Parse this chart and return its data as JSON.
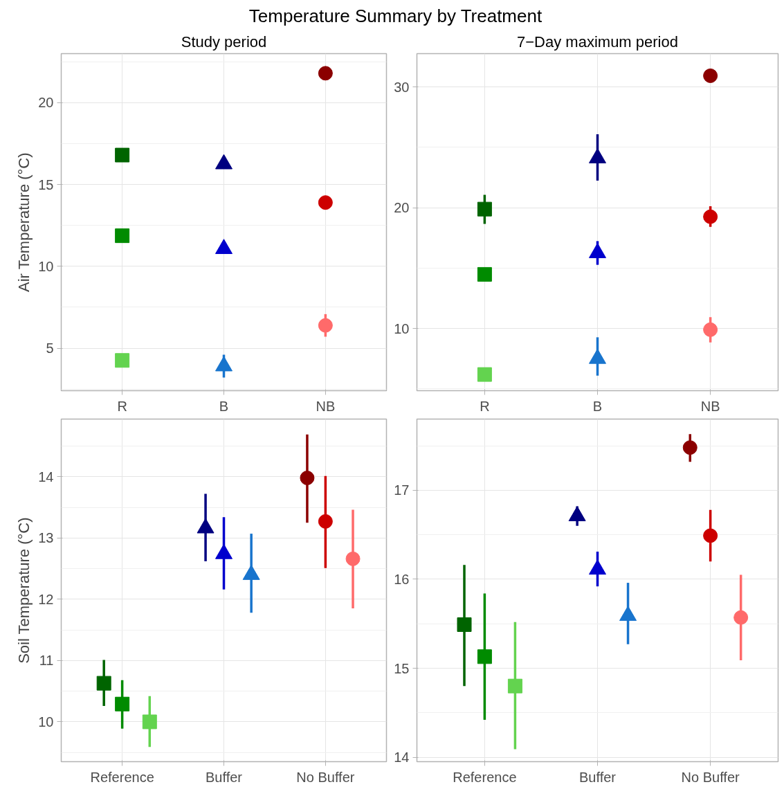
{
  "chart_data": [
    {
      "type": "scatter",
      "title": "Study period",
      "ylabel": "Air Temperature (°C)",
      "annotations": [
        "Temperature Summary by Treatment"
      ],
      "categories": [
        "R",
        "B",
        "NB"
      ],
      "ylim": [
        2.4,
        23.0
      ],
      "yticks": [
        5,
        10,
        15,
        20
      ],
      "grid": true,
      "series": [
        {
          "marker": "square",
          "x": [
            "R",
            "R",
            "R"
          ],
          "values": [
            16.8,
            11.87,
            4.25
          ],
          "colors": [
            "#006400",
            "#008b00",
            "#63d34f"
          ]
        },
        {
          "marker": "triangle",
          "x": [
            "B",
            "B",
            "B"
          ],
          "values": [
            16.25,
            11.07,
            3.9
          ],
          "colors": [
            "#000080",
            "#0000cd",
            "#1874cd"
          ],
          "errors": [
            null,
            null,
            [
              3.2,
              4.6
            ]
          ]
        },
        {
          "marker": "circle",
          "x": [
            "NB",
            "NB",
            "NB"
          ],
          "values": [
            21.8,
            13.9,
            6.39
          ],
          "colors": [
            "#8b0000",
            "#cd0000",
            "#ff6a6a"
          ],
          "errors": [
            null,
            null,
            [
              5.7,
              7.08
            ]
          ]
        }
      ]
    },
    {
      "type": "scatter",
      "title": "7−Day maximum period",
      "categories": [
        "R",
        "B",
        "NB"
      ],
      "ylim": [
        4.85,
        32.75
      ],
      "yticks": [
        10,
        20,
        30
      ],
      "grid": true,
      "series": [
        {
          "marker": "square",
          "x": [
            "R",
            "R",
            "R"
          ],
          "values": [
            19.88,
            14.48,
            6.19
          ],
          "colors": [
            "#006400",
            "#008b00",
            "#63d34f"
          ],
          "errors": [
            [
              18.66,
              21.06
            ],
            null,
            null
          ]
        },
        {
          "marker": "triangle",
          "x": [
            "B",
            "B",
            "B"
          ],
          "values": [
            24.1,
            16.25,
            7.5
          ],
          "colors": [
            "#000080",
            "#0000cd",
            "#1874cd"
          ],
          "errors": [
            [
              22.24,
              26.07
            ],
            0.98,
            [
              6.09,
              9.27
            ]
          ]
        },
        {
          "marker": "circle",
          "x": [
            "NB",
            "NB",
            "NB"
          ],
          "values": [
            30.92,
            19.25,
            9.9
          ],
          "colors": [
            "#8b0000",
            "#cd0000",
            "#ff6a6a"
          ],
          "errors": [
            null,
            [
              18.41,
              20.12
            ],
            [
              8.84,
              10.94
            ]
          ]
        }
      ]
    },
    {
      "type": "scatter",
      "ylabel": "Soil Temperature (°C)",
      "categories": [
        "Reference",
        "Buffer",
        "No Buffer"
      ],
      "ylim": [
        9.35,
        14.94
      ],
      "yticks": [
        10,
        11,
        12,
        13,
        14
      ],
      "grid": true,
      "series": [
        {
          "marker": "square",
          "x": [
            "Reference",
            "Reference",
            "Reference"
          ],
          "values": [
            10.63,
            10.29,
            10.0
          ],
          "colors": [
            "#006400",
            "#008b00",
            "#63d34f"
          ],
          "errors": [
            [
              10.26,
              11.01
            ],
            [
              9.89,
              10.68
            ],
            [
              9.59,
              10.42
            ]
          ]
        },
        {
          "marker": "triangle",
          "x": [
            "Buffer",
            "Buffer",
            "Buffer"
          ],
          "values": [
            13.16,
            12.74,
            12.4
          ],
          "colors": [
            "#000080",
            "#0000cd",
            "#1874cd"
          ],
          "errors": [
            [
              12.62,
              13.72
            ],
            [
              12.16,
              13.34
            ],
            [
              11.78,
              13.07
            ]
          ]
        },
        {
          "marker": "circle",
          "x": [
            "No Buffer",
            "No Buffer",
            "No Buffer"
          ],
          "values": [
            13.98,
            13.27,
            12.66
          ],
          "colors": [
            "#8b0000",
            "#cd0000",
            "#ff6a6a"
          ],
          "errors": [
            [
              13.25,
              14.69
            ],
            [
              12.51,
              14.01
            ],
            [
              11.85,
              13.46
            ]
          ]
        }
      ]
    },
    {
      "type": "scatter",
      "categories": [
        "Reference",
        "Buffer",
        "No Buffer"
      ],
      "ylim": [
        13.95,
        17.8
      ],
      "yticks": [
        14,
        15,
        16,
        17
      ],
      "grid": true,
      "series": [
        {
          "marker": "square",
          "x": [
            "Reference",
            "Reference",
            "Reference"
          ],
          "values": [
            15.49,
            15.13,
            14.8
          ],
          "colors": [
            "#006400",
            "#008b00",
            "#63d34f"
          ],
          "errors": [
            [
              14.8,
              16.16
            ],
            [
              14.42,
              15.84
            ],
            [
              14.09,
              15.52
            ]
          ]
        },
        {
          "marker": "triangle",
          "x": [
            "Buffer",
            "Buffer",
            "Buffer"
          ],
          "values": [
            16.71,
            16.11,
            15.59
          ],
          "colors": [
            "#000080",
            "#0000cd",
            "#1874cd"
          ],
          "errors": [
            0.11,
            [
              15.92,
              16.31
            ],
            [
              15.27,
              15.96
            ]
          ]
        },
        {
          "marker": "circle",
          "x": [
            "No Buffer",
            "No Buffer",
            "No Buffer"
          ],
          "values": [
            17.48,
            16.49,
            15.57
          ],
          "colors": [
            "#8b0000",
            "#cd0000",
            "#ff6a6a"
          ],
          "errors": [
            [
              17.32,
              17.63
            ],
            [
              16.2,
              16.78
            ],
            [
              15.09,
              16.05
            ]
          ]
        }
      ]
    }
  ]
}
